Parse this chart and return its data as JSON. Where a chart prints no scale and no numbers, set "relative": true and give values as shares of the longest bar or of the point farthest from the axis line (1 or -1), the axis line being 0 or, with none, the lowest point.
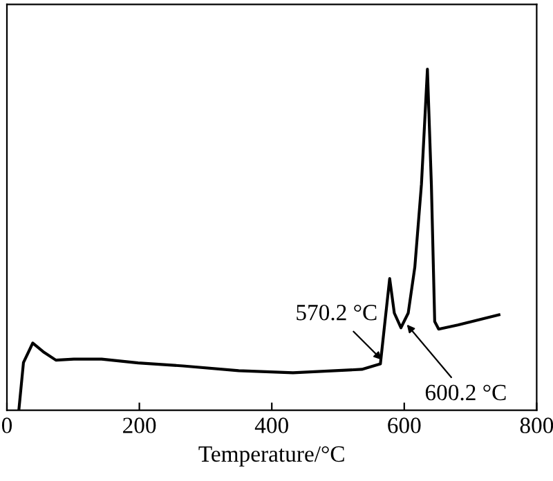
{
  "chart_data": {
    "type": "line",
    "relative": true,
    "xlabel": "Temperature/°C",
    "xlim": [
      0,
      800
    ],
    "xticks": [
      0,
      200,
      400,
      600,
      800
    ],
    "grid": false,
    "marker": "none",
    "line_style": "solid",
    "series": [
      {
        "color": "#000000",
        "x": [
          18,
          25,
          39,
          56,
          74,
          101,
          143,
          198,
          266,
          350,
          432,
          536,
          564,
          570,
          578,
          585,
          595,
          606,
          616,
          626,
          635,
          641,
          646,
          652,
          681,
          743
        ],
        "values": [
          0,
          0.14,
          0.197,
          0.17,
          0.147,
          0.15,
          0.15,
          0.139,
          0.13,
          0.116,
          0.11,
          0.12,
          0.136,
          0.244,
          0.386,
          0.285,
          0.242,
          0.285,
          0.42,
          0.663,
          1,
          0.66,
          0.26,
          0.238,
          0.25,
          0.28
        ]
      }
    ],
    "annotations": [
      {
        "text": "570.2 °C",
        "x": 570.2,
        "y": 0.14
      },
      {
        "text": "600.2 °C",
        "x": 600.2,
        "y": 0.26
      }
    ]
  }
}
